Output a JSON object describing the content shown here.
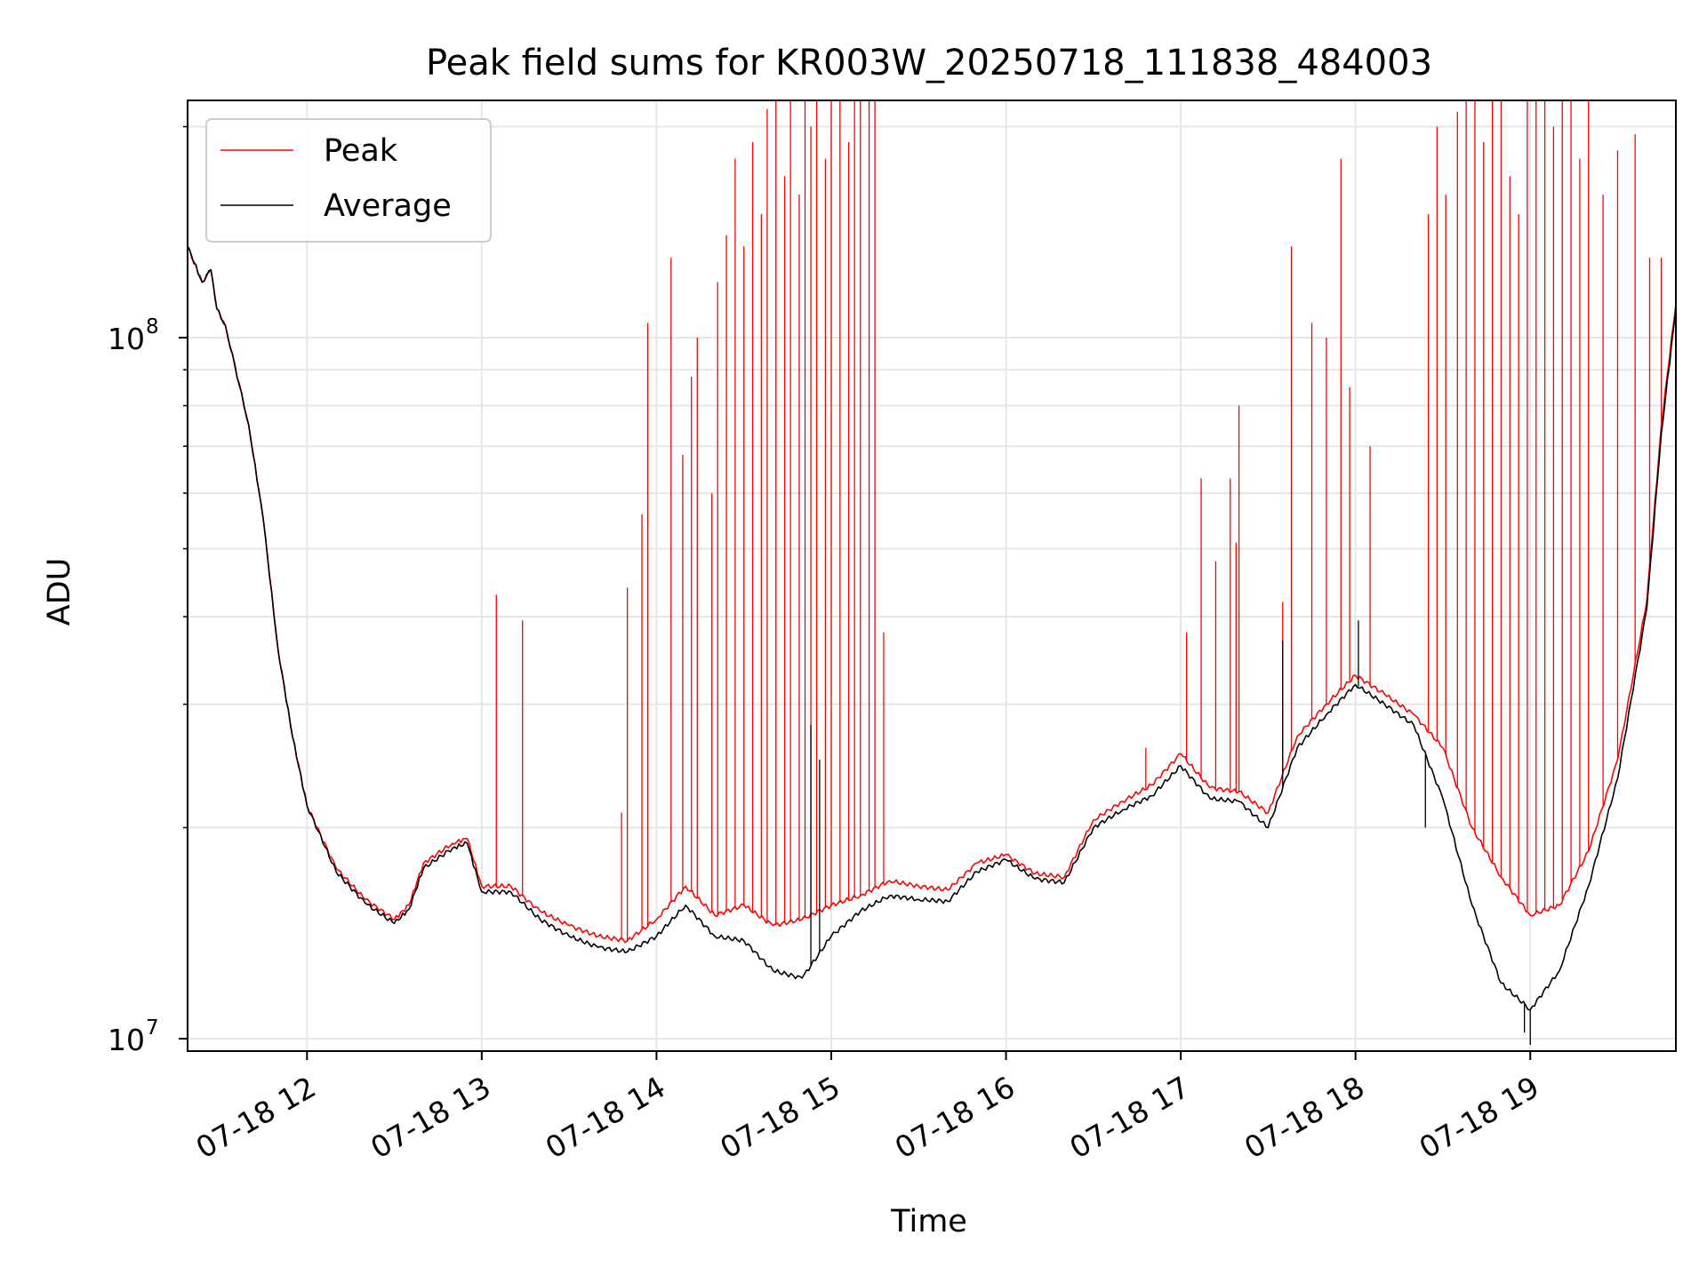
{
  "chart_data": {
    "type": "line",
    "title": "Peak field sums for KR003W_20250718_111838_484003",
    "xlabel": "Time",
    "ylabel": "ADU",
    "x_scale": "time",
    "y_scale": "log",
    "xlim": [
      "07-18 11:19",
      "07-18 19:50"
    ],
    "ylim": [
      9600000,
      218000000
    ],
    "grid": true,
    "legend_position": "upper-left",
    "x_ticks": [
      {
        "time": "07-18 12:00",
        "label": "07-18 12"
      },
      {
        "time": "07-18 13:00",
        "label": "07-18 13"
      },
      {
        "time": "07-18 14:00",
        "label": "07-18 14"
      },
      {
        "time": "07-18 15:00",
        "label": "07-18 15"
      },
      {
        "time": "07-18 16:00",
        "label": "07-18 16"
      },
      {
        "time": "07-18 17:00",
        "label": "07-18 17"
      },
      {
        "time": "07-18 18:00",
        "label": "07-18 18"
      },
      {
        "time": "07-18 19:00",
        "label": "07-18 19"
      }
    ],
    "y_ticks": [
      {
        "value": 10000000,
        "base": "10",
        "exp": "7"
      },
      {
        "value": 100000000,
        "base": "10",
        "exp": "8"
      }
    ],
    "y_minor_ticks": [
      20000000,
      30000000,
      40000000,
      50000000,
      60000000,
      70000000,
      80000000,
      90000000,
      200000000
    ],
    "series": [
      {
        "name": "Peak",
        "color": "#ff0000",
        "baseline": [
          [
            "07-18 11:19",
            135000000
          ],
          [
            "07-18 11:24",
            120000000
          ],
          [
            "07-18 11:27",
            125000000
          ],
          [
            "07-18 11:29",
            110000000
          ],
          [
            "07-18 11:32",
            104000000
          ],
          [
            "07-18 11:40",
            75000000
          ],
          [
            "07-18 11:45",
            55000000
          ],
          [
            "07-18 11:50",
            36000000
          ],
          [
            "07-18 11:55",
            27000000
          ],
          [
            "07-18 12:00",
            21500000
          ],
          [
            "07-18 12:10",
            17500000
          ],
          [
            "07-18 12:20",
            15800000
          ],
          [
            "07-18 12:30",
            14800000
          ],
          [
            "07-18 12:35",
            15500000
          ],
          [
            "07-18 12:40",
            17800000
          ],
          [
            "07-18 12:50",
            19000000
          ],
          [
            "07-18 12:55",
            19300000
          ],
          [
            "07-18 13:00",
            16500000
          ],
          [
            "07-18 13:10",
            16500000
          ],
          [
            "07-18 13:20",
            15200000
          ],
          [
            "07-18 13:30",
            14500000
          ],
          [
            "07-18 13:40",
            14000000
          ],
          [
            "07-18 13:50",
            13800000
          ],
          [
            "07-18 14:00",
            14800000
          ],
          [
            "07-18 14:10",
            16500000
          ],
          [
            "07-18 14:20",
            15000000
          ],
          [
            "07-18 14:30",
            15500000
          ],
          [
            "07-18 14:40",
            14500000
          ],
          [
            "07-18 14:50",
            14800000
          ],
          [
            "07-18 15:00",
            15500000
          ],
          [
            "07-18 15:10",
            16000000
          ],
          [
            "07-18 15:20",
            16800000
          ],
          [
            "07-18 15:30",
            16500000
          ],
          [
            "07-18 15:40",
            16300000
          ],
          [
            "07-18 15:50",
            17800000
          ],
          [
            "07-18 16:00",
            18300000
          ],
          [
            "07-18 16:10",
            17200000
          ],
          [
            "07-18 16:20",
            17000000
          ],
          [
            "07-18 16:30",
            20500000
          ],
          [
            "07-18 16:40",
            21800000
          ],
          [
            "07-18 16:50",
            23000000
          ],
          [
            "07-18 17:00",
            25500000
          ],
          [
            "07-18 17:10",
            22800000
          ],
          [
            "07-18 17:20",
            22500000
          ],
          [
            "07-18 17:30",
            21000000
          ],
          [
            "07-18 17:40",
            27000000
          ],
          [
            "07-18 17:50",
            30000000
          ],
          [
            "07-18 18:00",
            33000000
          ],
          [
            "07-18 18:10",
            31000000
          ],
          [
            "07-18 18:20",
            29000000
          ],
          [
            "07-18 18:30",
            26000000
          ],
          [
            "07-18 18:40",
            20000000
          ],
          [
            "07-18 18:50",
            17000000
          ],
          [
            "07-18 19:00",
            15000000
          ],
          [
            "07-18 19:10",
            15500000
          ],
          [
            "07-18 19:20",
            18500000
          ],
          [
            "07-18 19:30",
            25000000
          ],
          [
            "07-18 19:40",
            42000000
          ],
          [
            "07-18 19:45",
            75000000
          ],
          [
            "07-18 19:50",
            112000000
          ]
        ],
        "spikes": [
          [
            "07-18 13:05",
            43000000
          ],
          [
            "07-18 13:14",
            39500000
          ],
          [
            "07-18 13:48",
            21000000
          ],
          [
            "07-18 13:50",
            44000000
          ],
          [
            "07-18 13:55",
            56000000
          ],
          [
            "07-18 13:57",
            105000000
          ],
          [
            "07-18 14:05",
            130000000
          ],
          [
            "07-18 14:09",
            68000000
          ],
          [
            "07-18 14:12",
            88000000
          ],
          [
            "07-18 14:14",
            100000000
          ],
          [
            "07-18 14:19",
            60000000
          ],
          [
            "07-18 14:21",
            120000000
          ],
          [
            "07-18 14:24",
            140000000
          ],
          [
            "07-18 14:27",
            180000000
          ],
          [
            "07-18 14:30",
            135000000
          ],
          [
            "07-18 14:33",
            190000000
          ],
          [
            "07-18 14:36",
            150000000
          ],
          [
            "07-18 14:38",
            212000000
          ],
          [
            "07-18 14:41",
            218000000
          ],
          [
            "07-18 14:44",
            170000000
          ],
          [
            "07-18 14:46",
            218000000
          ],
          [
            "07-18 14:49",
            160000000
          ],
          [
            "07-18 14:51",
            218000000
          ],
          [
            "07-18 14:53",
            200000000
          ],
          [
            "07-18 14:55",
            218000000
          ],
          [
            "07-18 14:58",
            180000000
          ],
          [
            "07-18 15:00",
            218000000
          ],
          [
            "07-18 15:03",
            218000000
          ],
          [
            "07-18 15:06",
            190000000
          ],
          [
            "07-18 15:08",
            218000000
          ],
          [
            "07-18 15:10",
            218000000
          ],
          [
            "07-18 15:13",
            218000000
          ],
          [
            "07-18 15:15",
            218000000
          ],
          [
            "07-18 15:18",
            38000000
          ],
          [
            "07-18 16:48",
            26000000
          ],
          [
            "07-18 17:02",
            38000000
          ],
          [
            "07-18 17:07",
            63000000
          ],
          [
            "07-18 17:12",
            48000000
          ],
          [
            "07-18 17:17",
            63000000
          ],
          [
            "07-18 17:19",
            51000000
          ],
          [
            "07-18 17:20",
            80000000
          ],
          [
            "07-18 17:35",
            42000000
          ],
          [
            "07-18 17:38",
            135000000
          ],
          [
            "07-18 17:45",
            105000000
          ],
          [
            "07-18 17:50",
            100000000
          ],
          [
            "07-18 17:55",
            180000000
          ],
          [
            "07-18 17:58",
            85000000
          ],
          [
            "07-18 18:05",
            70000000
          ],
          [
            "07-18 18:25",
            150000000
          ],
          [
            "07-18 18:28",
            200000000
          ],
          [
            "07-18 18:31",
            160000000
          ],
          [
            "07-18 18:35",
            210000000
          ],
          [
            "07-18 18:38",
            218000000
          ],
          [
            "07-18 18:41",
            218000000
          ],
          [
            "07-18 18:44",
            190000000
          ],
          [
            "07-18 18:47",
            218000000
          ],
          [
            "07-18 18:50",
            218000000
          ],
          [
            "07-18 18:53",
            170000000
          ],
          [
            "07-18 18:56",
            150000000
          ],
          [
            "07-18 18:59",
            218000000
          ],
          [
            "07-18 19:02",
            218000000
          ],
          [
            "07-18 19:05",
            218000000
          ],
          [
            "07-18 19:08",
            200000000
          ],
          [
            "07-18 19:11",
            218000000
          ],
          [
            "07-18 19:14",
            218000000
          ],
          [
            "07-18 19:17",
            180000000
          ],
          [
            "07-18 19:20",
            218000000
          ],
          [
            "07-18 19:25",
            160000000
          ],
          [
            "07-18 19:30",
            185000000
          ],
          [
            "07-18 19:36",
            195000000
          ],
          [
            "07-18 19:41",
            130000000
          ],
          [
            "07-18 19:45",
            130000000
          ]
        ]
      },
      {
        "name": "Average",
        "color": "#000000",
        "baseline": [
          [
            "07-18 11:19",
            135000000
          ],
          [
            "07-18 11:24",
            120000000
          ],
          [
            "07-18 11:27",
            125000000
          ],
          [
            "07-18 11:29",
            110000000
          ],
          [
            "07-18 11:32",
            104000000
          ],
          [
            "07-18 11:40",
            75000000
          ],
          [
            "07-18 11:45",
            55000000
          ],
          [
            "07-18 11:50",
            36000000
          ],
          [
            "07-18 11:55",
            27000000
          ],
          [
            "07-18 12:00",
            21500000
          ],
          [
            "07-18 12:10",
            17300000
          ],
          [
            "07-18 12:20",
            15600000
          ],
          [
            "07-18 12:30",
            14600000
          ],
          [
            "07-18 12:35",
            15300000
          ],
          [
            "07-18 12:40",
            17500000
          ],
          [
            "07-18 12:50",
            18700000
          ],
          [
            "07-18 12:55",
            19000000
          ],
          [
            "07-18 13:00",
            16200000
          ],
          [
            "07-18 13:10",
            16200000
          ],
          [
            "07-18 13:20",
            14800000
          ],
          [
            "07-18 13:30",
            14000000
          ],
          [
            "07-18 13:40",
            13500000
          ],
          [
            "07-18 13:50",
            13300000
          ],
          [
            "07-18 14:00",
            14000000
          ],
          [
            "07-18 14:10",
            15500000
          ],
          [
            "07-18 14:20",
            14000000
          ],
          [
            "07-18 14:30",
            13800000
          ],
          [
            "07-18 14:40",
            12500000
          ],
          [
            "07-18 14:50",
            12200000
          ],
          [
            "07-18 15:00",
            14000000
          ],
          [
            "07-18 15:10",
            15200000
          ],
          [
            "07-18 15:20",
            16000000
          ],
          [
            "07-18 15:30",
            15800000
          ],
          [
            "07-18 15:40",
            15700000
          ],
          [
            "07-18 15:50",
            17300000
          ],
          [
            "07-18 16:00",
            18000000
          ],
          [
            "07-18 16:10",
            16900000
          ],
          [
            "07-18 16:20",
            16700000
          ],
          [
            "07-18 16:30",
            20000000
          ],
          [
            "07-18 16:40",
            21200000
          ],
          [
            "07-18 16:50",
            22200000
          ],
          [
            "07-18 17:00",
            24500000
          ],
          [
            "07-18 17:10",
            22000000
          ],
          [
            "07-18 17:20",
            21800000
          ],
          [
            "07-18 17:30",
            20000000
          ],
          [
            "07-18 17:40",
            26000000
          ],
          [
            "07-18 17:50",
            29000000
          ],
          [
            "07-18 18:00",
            32000000
          ],
          [
            "07-18 18:10",
            30000000
          ],
          [
            "07-18 18:20",
            28000000
          ],
          [
            "07-18 18:30",
            22000000
          ],
          [
            "07-18 18:40",
            15500000
          ],
          [
            "07-18 18:50",
            12000000
          ],
          [
            "07-18 19:00",
            11000000
          ],
          [
            "07-18 19:10",
            12500000
          ],
          [
            "07-18 19:20",
            16500000
          ],
          [
            "07-18 19:30",
            23500000
          ],
          [
            "07-18 19:40",
            41000000
          ],
          [
            "07-18 19:45",
            73000000
          ],
          [
            "07-18 19:50",
            110000000
          ]
        ],
        "spikes": [
          [
            "07-18 14:53",
            28000000
          ],
          [
            "07-18 14:56",
            25000000
          ],
          [
            "07-18 18:24",
            20000000
          ],
          [
            "07-18 18:58",
            10200000
          ],
          [
            "07-18 19:00",
            9800000
          ],
          [
            "07-18 17:35",
            37000000
          ],
          [
            "07-18 18:01",
            39500000
          ]
        ]
      }
    ]
  }
}
